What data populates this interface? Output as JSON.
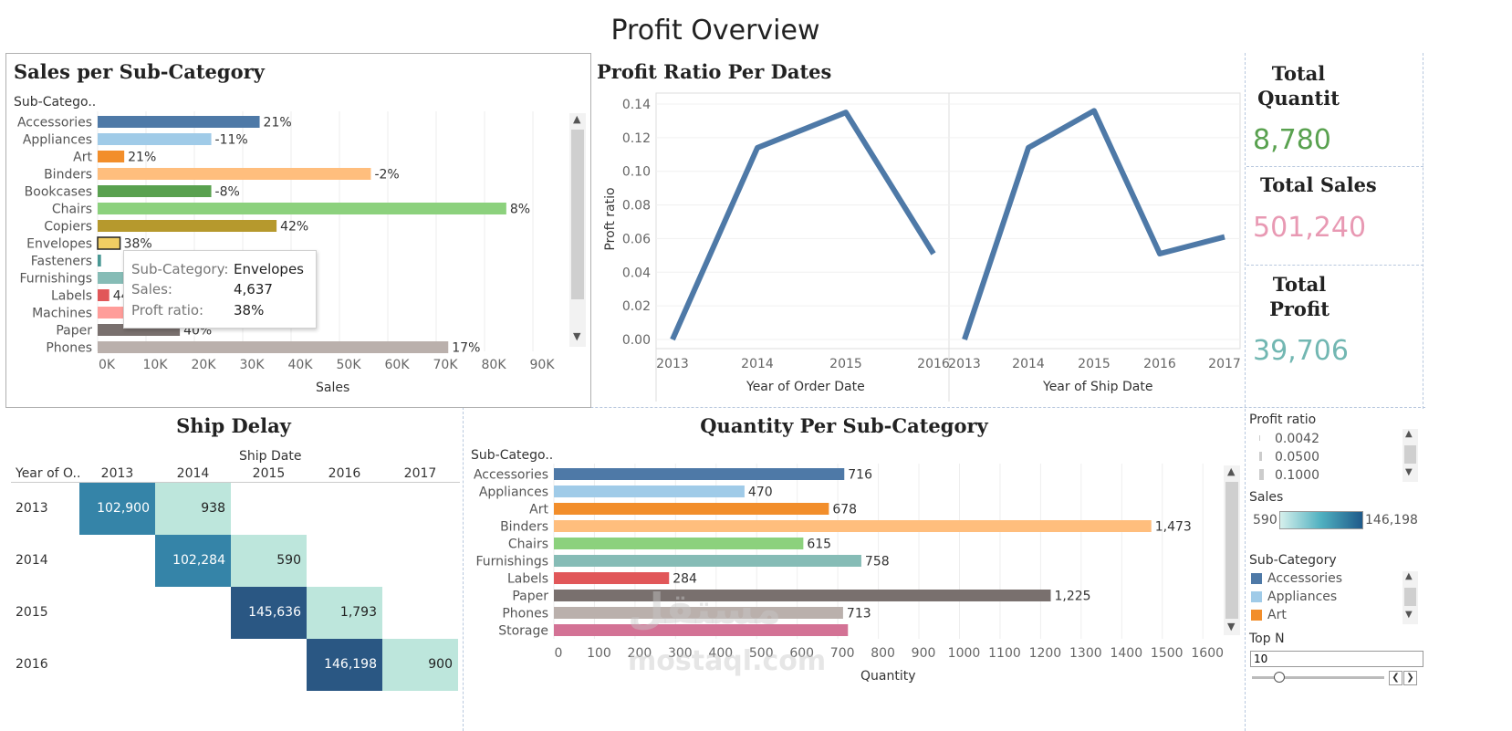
{
  "title": "Profit Overview",
  "sales_panel": {
    "title": "Sales per Sub-Category",
    "header": "Sub-Catego..",
    "xlabel": "Sales",
    "ticks": [
      "0K",
      "10K",
      "20K",
      "30K",
      "40K",
      "50K",
      "60K",
      "70K",
      "80K",
      "90K"
    ],
    "tooltip": {
      "k1": "Sub-Category:",
      "v1": "Envelopes",
      "k2": "Sales:",
      "v2": "4,637",
      "k3": "Proft ratio:",
      "v3": "38%"
    }
  },
  "profit_panel": {
    "title": "Profit Ratio Per Dates",
    "ylabel": "Proft ratio",
    "yticks": [
      "0.14",
      "0.12",
      "0.10",
      "0.08",
      "0.06",
      "0.04",
      "0.02",
      "0.00"
    ],
    "left_xlabel": "Year of Order Date",
    "right_xlabel": "Year of Ship Date",
    "left_years": [
      "2013",
      "2014",
      "2015",
      "2016"
    ],
    "right_years": [
      "2013",
      "2014",
      "2015",
      "2016",
      "2017"
    ]
  },
  "kpis": {
    "qty_title": "Total Quantit",
    "qty_value": "8,780",
    "sales_title": "Total Sales",
    "sales_value": "501,240",
    "profit_title": "Total Profit",
    "profit_value": "39,706"
  },
  "ship_delay": {
    "title": "Ship Delay",
    "col_group": "Ship Date",
    "row_header": "Year of O..",
    "columns": [
      "2013",
      "2014",
      "2015",
      "2016",
      "2017"
    ],
    "rows": [
      {
        "year": "2013",
        "cells": [
          "102,900",
          "938",
          "",
          "",
          ""
        ]
      },
      {
        "year": "2014",
        "cells": [
          "",
          "102,284",
          "590",
          "",
          ""
        ]
      },
      {
        "year": "2015",
        "cells": [
          "",
          "",
          "145,636",
          "1,793",
          ""
        ]
      },
      {
        "year": "2016",
        "cells": [
          "",
          "",
          "",
          "146,198",
          "900"
        ]
      }
    ]
  },
  "quantity_panel": {
    "title": "Quantity Per Sub-Category",
    "header": "Sub-Catego..",
    "xlabel": "Quantity",
    "ticks": [
      "0",
      "100",
      "200",
      "300",
      "400",
      "500",
      "600",
      "700",
      "800",
      "900",
      "1000",
      "1100",
      "1200",
      "1300",
      "1400",
      "1500",
      "1600"
    ]
  },
  "filters": {
    "profit_ratio_title": "Profit ratio",
    "profit_ratio_items": [
      "0.0042",
      "0.0500",
      "0.1000"
    ],
    "sales_title": "Sales",
    "sales_min": "590",
    "sales_max": "146,198",
    "subcat_title": "Sub-Category",
    "subcat_items": [
      {
        "label": "Accessories",
        "color": "#4e79a7"
      },
      {
        "label": "Appliances",
        "color": "#a0cbe8"
      },
      {
        "label": "Art",
        "color": "#f28e2b"
      }
    ],
    "topn_title": "Top N",
    "topn_value": "10"
  },
  "watermark": {
    "line1": "مستقل",
    "line2": "mostaql.com"
  },
  "chart_data": [
    {
      "type": "bar",
      "title": "Sales per Sub-Category",
      "xlabel": "Sales",
      "xlim": [
        0,
        100000
      ],
      "categories": [
        "Accessories",
        "Appliances",
        "Art",
        "Binders",
        "Bookcases",
        "Chairs",
        "Copiers",
        "Envelopes",
        "Fasteners",
        "Furnishings",
        "Labels",
        "Machines",
        "Paper",
        "Phones"
      ],
      "values": [
        33500,
        23500,
        5500,
        56500,
        23500,
        84500,
        37000,
        4637,
        700,
        17000,
        2400,
        15000,
        17000,
        72500
      ],
      "labels": [
        "21%",
        "-11%",
        "21%",
        "-2%",
        "-8%",
        "8%",
        "42%",
        "38%",
        "",
        "",
        "44",
        "",
        "40%",
        "17%"
      ],
      "colors": [
        "#4e79a7",
        "#a0cbe8",
        "#f28e2b",
        "#ffbe7d",
        "#59a14f",
        "#8cd17d",
        "#b6992d",
        "#f1ce63",
        "#499894",
        "#86bcb6",
        "#e15759",
        "#ff9d9a",
        "#79706e",
        "#bab0ac"
      ]
    },
    {
      "type": "line",
      "title": "Profit Ratio Per Dates",
      "xlabel": "Year of Order Date",
      "ylabel": "Proft ratio",
      "ylim": [
        0,
        0.14
      ],
      "x": [
        "2013",
        "2014",
        "2015",
        "2016"
      ],
      "series": [
        {
          "values": [
            0.0,
            0.114,
            0.135,
            0.051
          ]
        }
      ]
    },
    {
      "type": "line",
      "xlabel": "Year of Ship Date",
      "ylim": [
        0,
        0.14
      ],
      "x": [
        "2013",
        "2014",
        "2015",
        "2016",
        "2017"
      ],
      "series": [
        {
          "values": [
            0.0,
            0.114,
            0.136,
            0.051,
            0.061
          ]
        }
      ]
    },
    {
      "type": "bar",
      "title": "Quantity Per Sub-Category",
      "xlabel": "Quantity",
      "xlim": [
        0,
        1650
      ],
      "categories": [
        "Accessories",
        "Appliances",
        "Art",
        "Binders",
        "Chairs",
        "Furnishings",
        "Labels",
        "Paper",
        "Phones",
        "Storage"
      ],
      "values": [
        716,
        470,
        678,
        1473,
        615,
        758,
        284,
        1225,
        713,
        725
      ],
      "labels": [
        "716",
        "470",
        "678",
        "1,473",
        "615",
        "758",
        "284",
        "1,225",
        "713",
        ""
      ],
      "colors": [
        "#4e79a7",
        "#a0cbe8",
        "#f28e2b",
        "#ffbe7d",
        "#8cd17d",
        "#86bcb6",
        "#e15759",
        "#79706e",
        "#bab0ac",
        "#d37295"
      ]
    }
  ]
}
